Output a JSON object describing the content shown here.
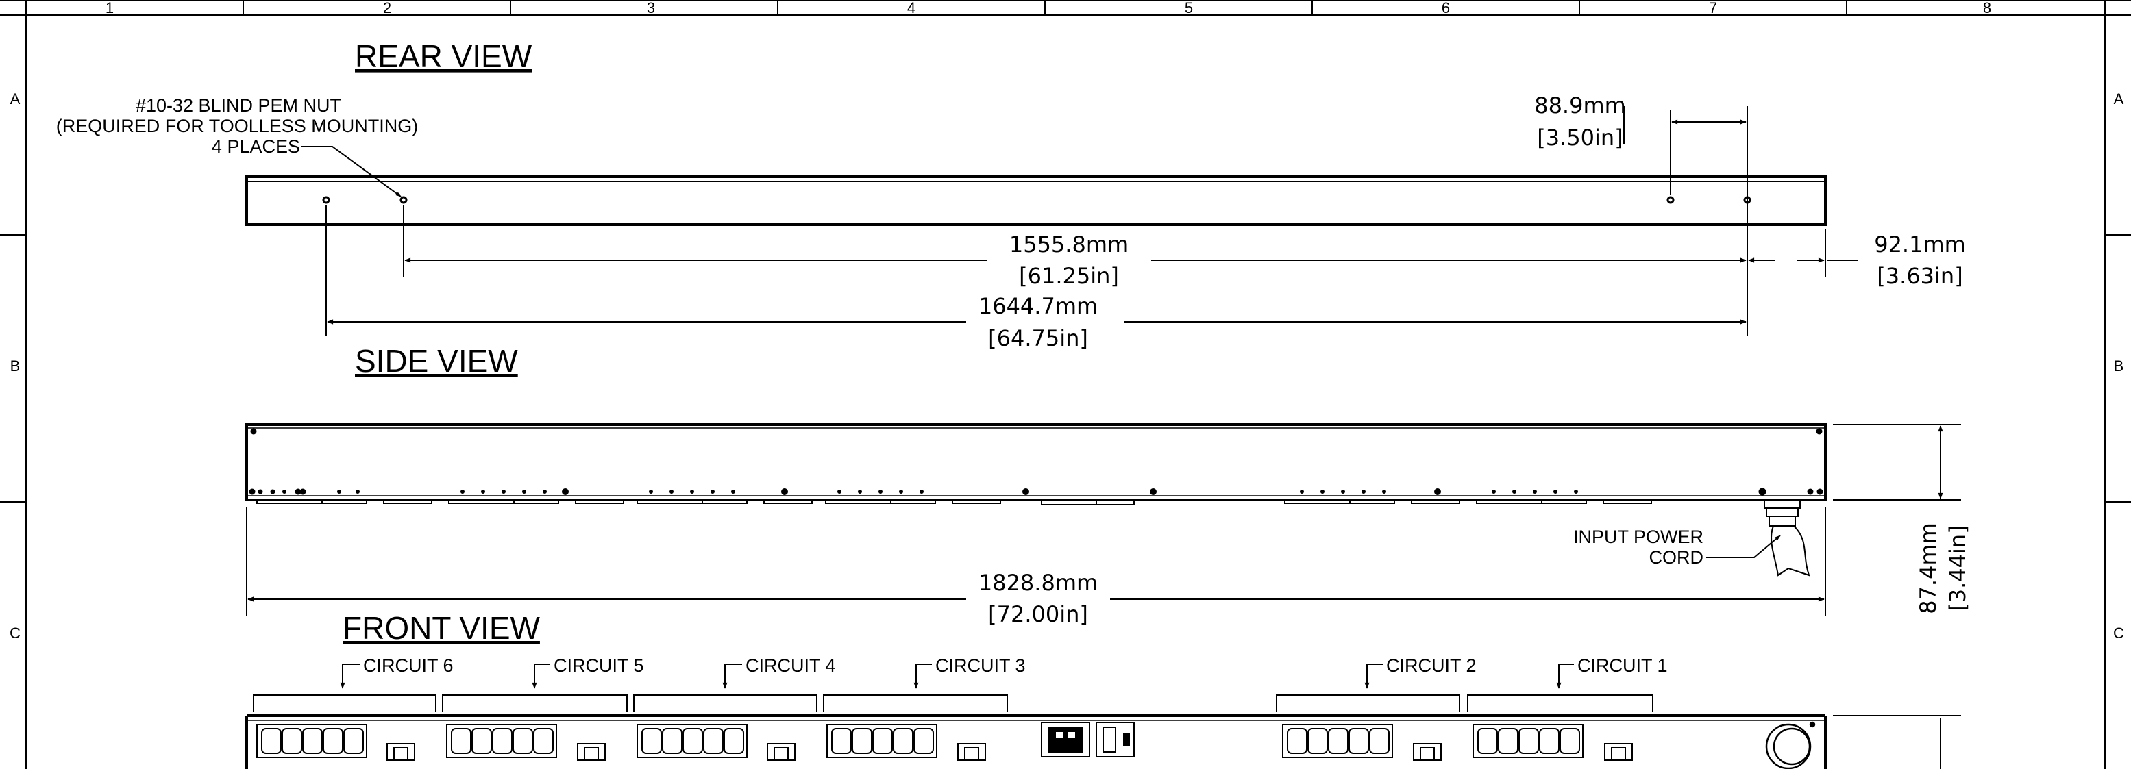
{
  "frame": {
    "columns": [
      "1",
      "2",
      "3",
      "4",
      "5",
      "6",
      "7",
      "8"
    ],
    "rows": [
      "A",
      "B",
      "C"
    ]
  },
  "rear_view": {
    "title": "REAR VIEW",
    "nut_note": {
      "line1": "#10-32 BLIND PEM NUT",
      "line2": "(REQUIRED FOR TOOLLESS MOUNTING)",
      "line3": "4 PLACES"
    },
    "dim_hole_spacing": {
      "mm": "88.9mm",
      "in": "[3.50in]"
    },
    "dim_inner_span": {
      "mm": "1555.8mm",
      "in": "[61.25in]"
    },
    "dim_outer_span": {
      "mm": "1644.7mm",
      "in": "[64.75in]"
    },
    "dim_end_offset": {
      "mm": "92.1mm",
      "in": "[3.63in]"
    }
  },
  "side_view": {
    "title": "SIDE VIEW",
    "cord_note": {
      "line1": "INPUT POWER",
      "line2": "CORD"
    },
    "dim_length": {
      "mm": "1828.8mm",
      "in": "[72.00in]"
    },
    "dim_height": {
      "mm": "87.4mm",
      "in": "[3.44in]"
    }
  },
  "front_view": {
    "title": "FRONT VIEW",
    "circuits": [
      "CIRCUIT 6",
      "CIRCUIT 5",
      "CIRCUIT 4",
      "CIRCUIT 3",
      "CIRCUIT 2",
      "CIRCUIT 1"
    ]
  }
}
